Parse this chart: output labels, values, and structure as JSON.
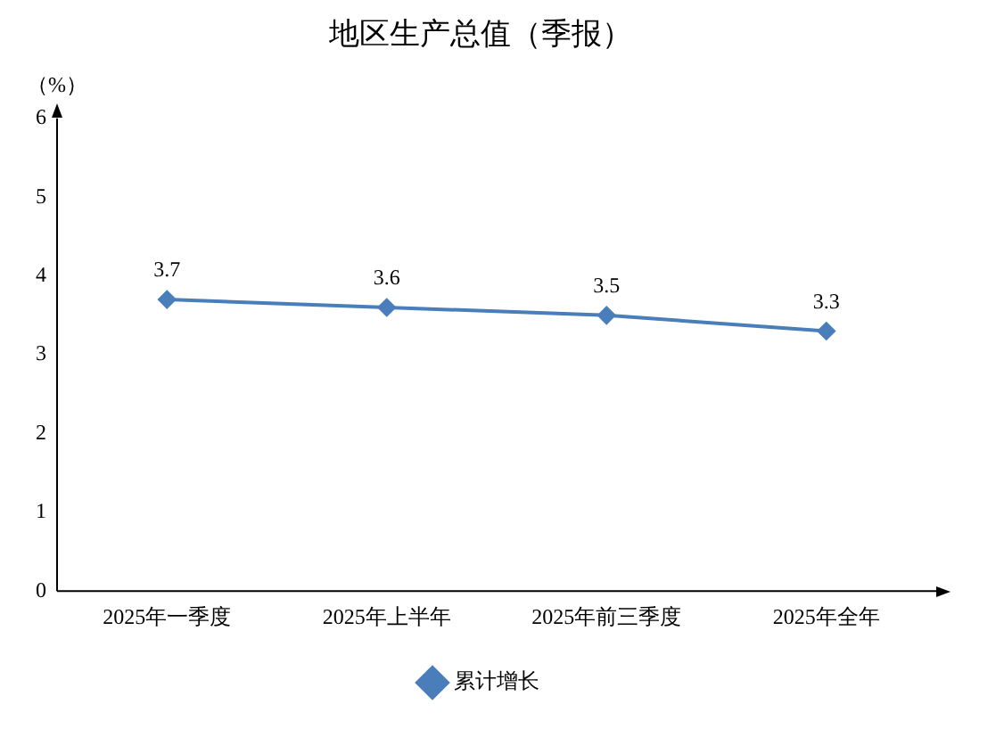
{
  "chart_data": {
    "type": "line",
    "title": "地区生产总值（季报）",
    "ylabel": "（%）",
    "categories": [
      "2025年一季度",
      "2025年上半年",
      "2025年前三季度",
      "2025年全年"
    ],
    "series": [
      {
        "name": "累计增长",
        "color": "#4a7ebb",
        "values": [
          3.7,
          3.6,
          3.5,
          3.3
        ]
      }
    ],
    "ylim": [
      0,
      6
    ],
    "yticks": [
      0,
      1,
      2,
      3,
      4,
      5,
      6
    ],
    "grid": false,
    "legend": "bottom",
    "marker": "diamond",
    "line_style": "solid",
    "data_labels": true
  }
}
